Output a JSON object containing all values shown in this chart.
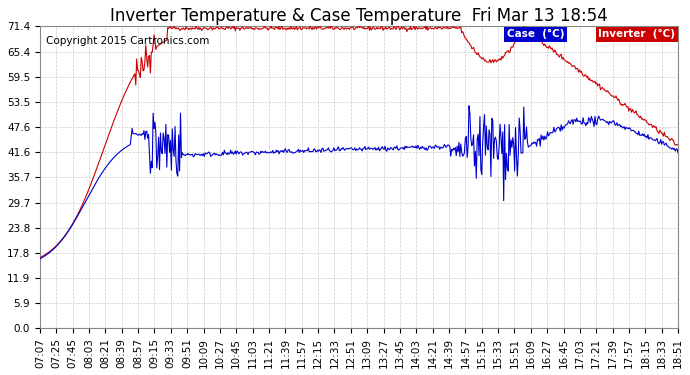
{
  "title": "Inverter Temperature & Case Temperature  Fri Mar 13 18:54",
  "copyright": "Copyright 2015 Cartronics.com",
  "background_color": "#ffffff",
  "plot_bg_color": "#ffffff",
  "grid_color": "#cccccc",
  "yticks": [
    0.0,
    5.9,
    11.9,
    17.8,
    23.8,
    29.7,
    35.7,
    41.6,
    47.6,
    53.5,
    59.5,
    65.4,
    71.4
  ],
  "xtick_labels": [
    "07:07",
    "07:25",
    "07:45",
    "08:03",
    "08:21",
    "08:39",
    "08:57",
    "09:15",
    "09:33",
    "09:51",
    "10:09",
    "10:27",
    "10:45",
    "11:03",
    "11:21",
    "11:39",
    "11:57",
    "12:15",
    "12:33",
    "12:51",
    "13:09",
    "13:27",
    "13:45",
    "14:03",
    "14:21",
    "14:39",
    "14:57",
    "15:15",
    "15:33",
    "15:51",
    "16:09",
    "16:27",
    "16:45",
    "17:03",
    "17:21",
    "17:39",
    "17:57",
    "18:15",
    "18:33",
    "18:51"
  ],
  "line_case_color": "#0000cc",
  "line_inverter_color": "#cc0000",
  "legend_case_bg": "#0000cc",
  "legend_inverter_bg": "#cc0000",
  "title_fontsize": 12,
  "copyright_fontsize": 7.5,
  "tick_fontsize": 7.5,
  "ylim": [
    0.0,
    71.4
  ]
}
